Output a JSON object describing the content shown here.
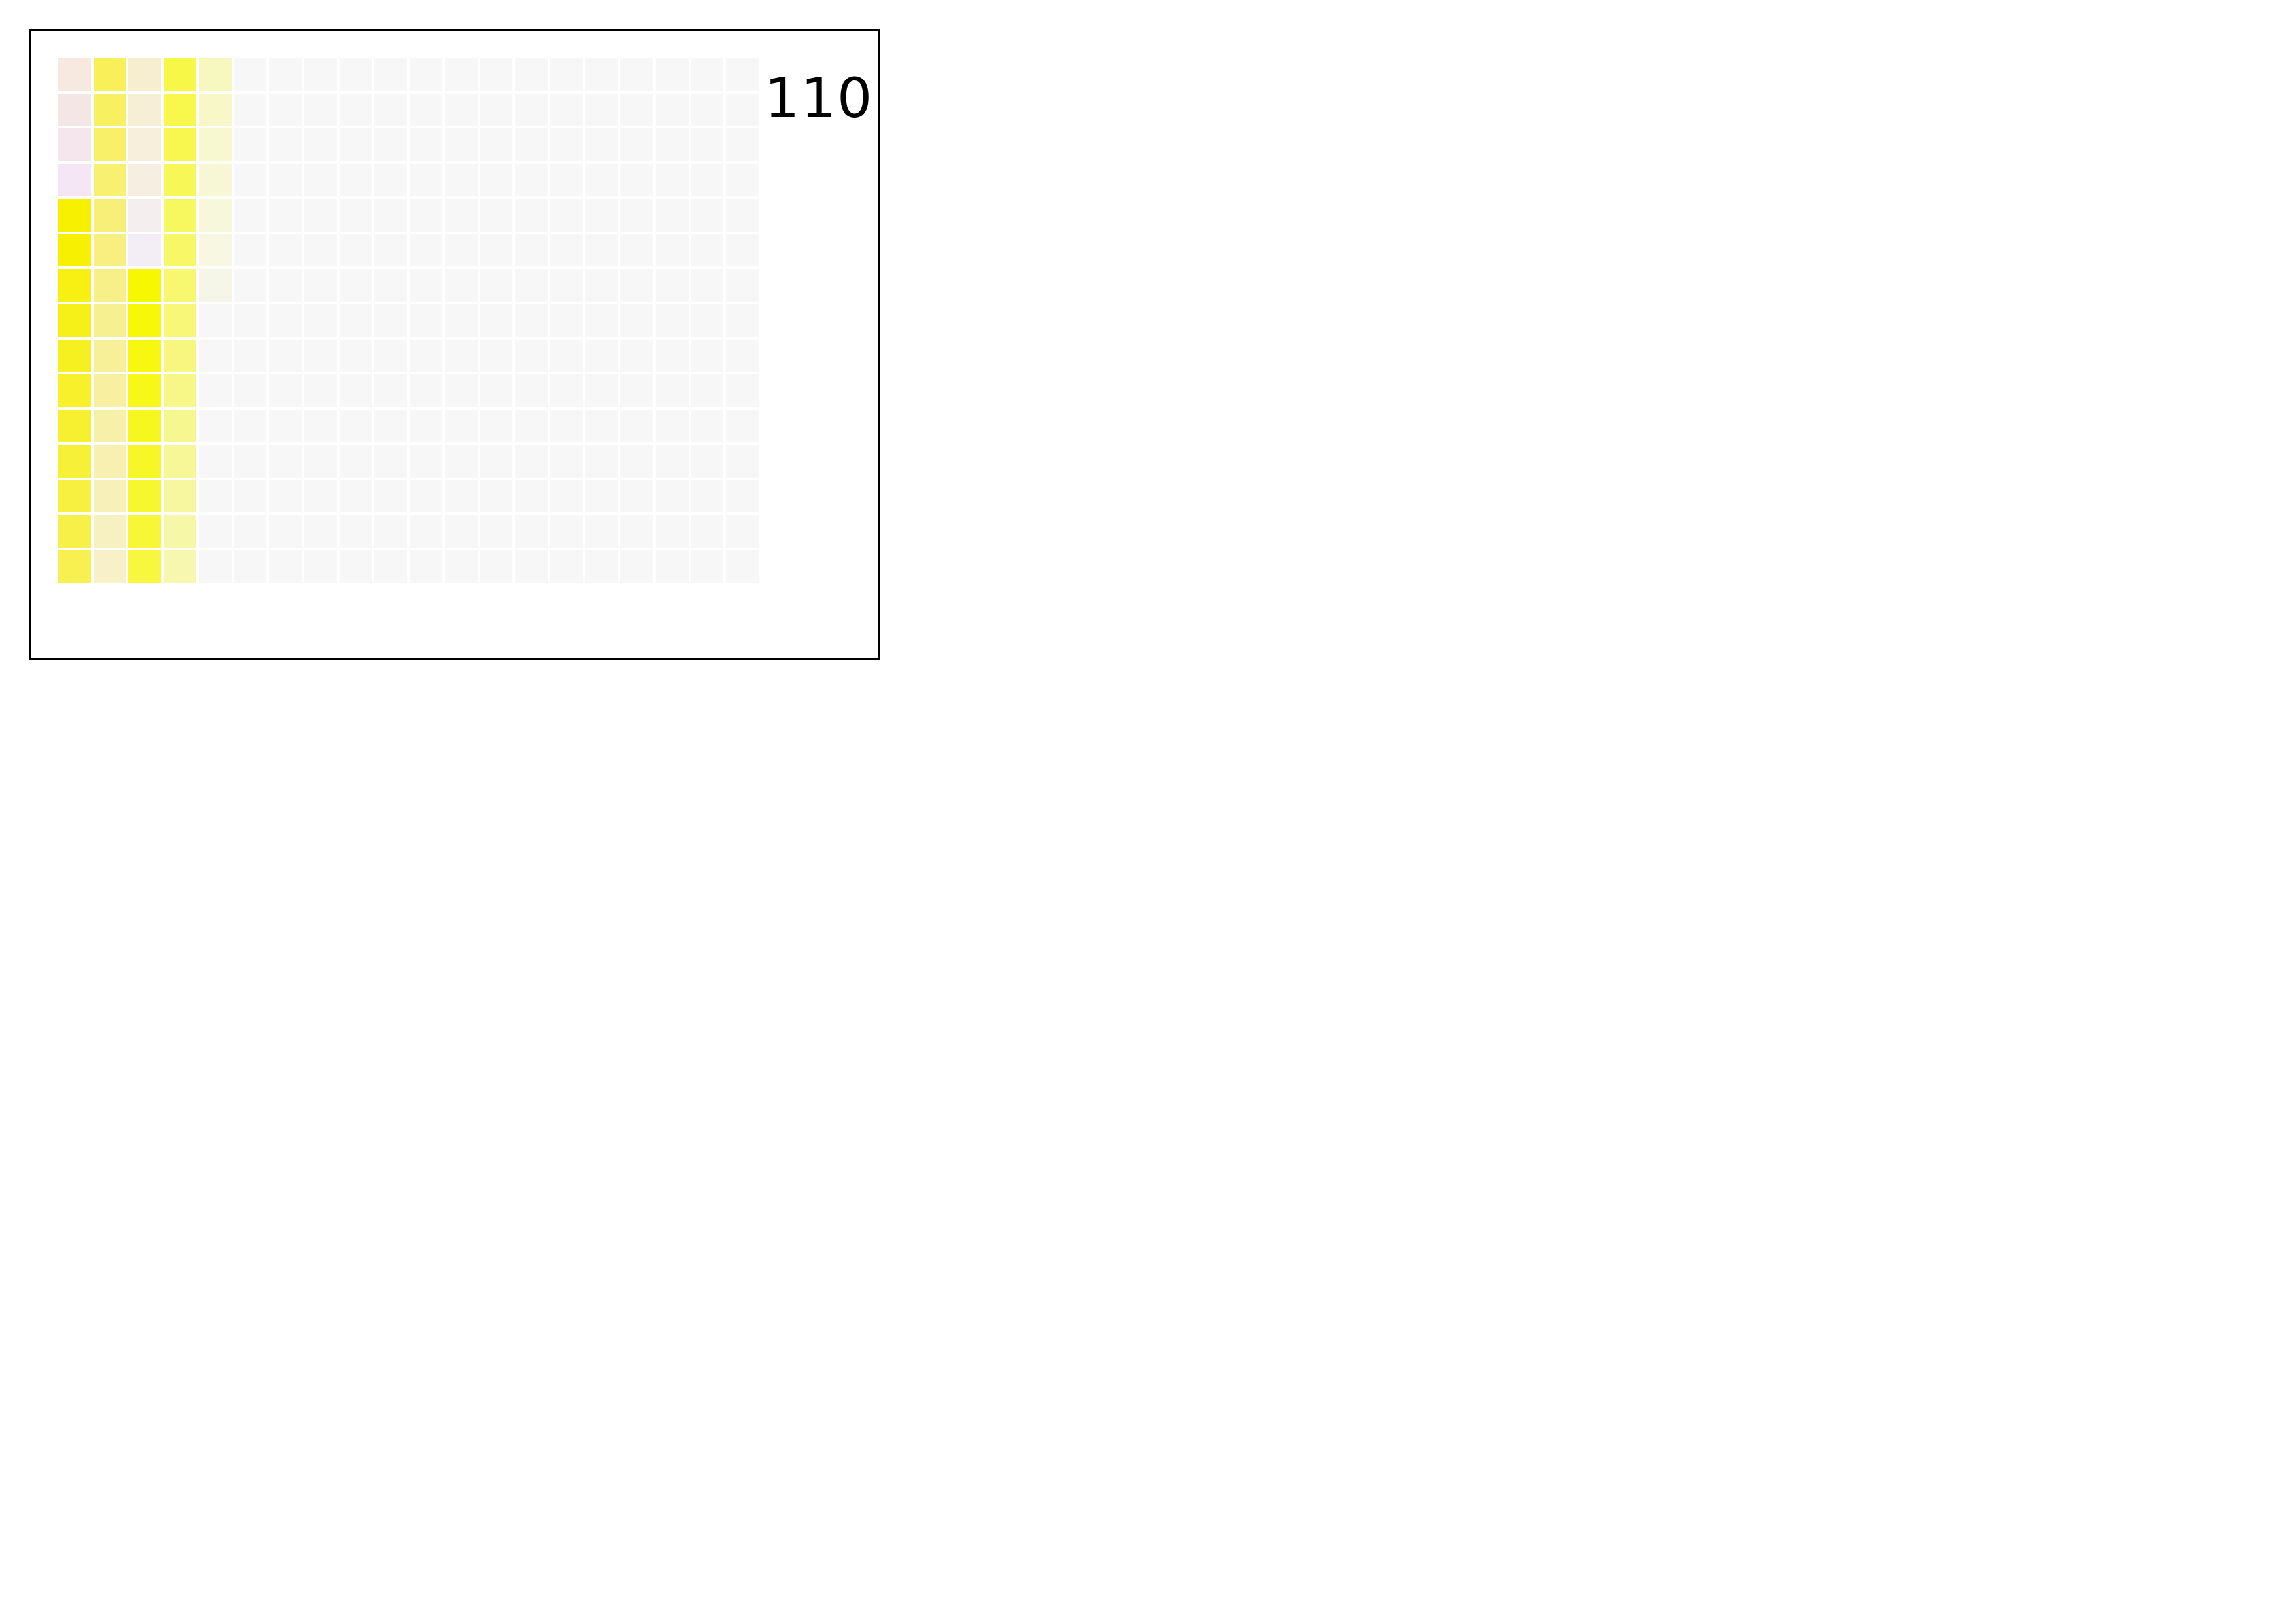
{
  "counter": "110",
  "grid": {
    "columns": 20,
    "rows": 15,
    "empty_color": "#f7f7f7",
    "filled_columns": [
      [
        "#f7e8e0",
        "#f5e6e6",
        "#f5e6ee",
        "#f5e6f5",
        "#f7f000",
        "#f7f000",
        "#f7f012",
        "#f7f018",
        "#f7f020",
        "#f7f02a",
        "#f7f030",
        "#f7f038",
        "#f7f040",
        "#f7f048",
        "#f7f050"
      ],
      [
        "#f7f058",
        "#f7f060",
        "#f7f068",
        "#f7f070",
        "#f7f078",
        "#f7f080",
        "#f7f088",
        "#f7f090",
        "#f7f098",
        "#f7f0a0",
        "#f7f0a8",
        "#f7f0b0",
        "#f7f0b8",
        "#f7f0c0",
        "#f7f0c8"
      ],
      [
        "#f7eed0",
        "#f7eed6",
        "#f7eedc",
        "#f7eee2",
        "#f5eeee",
        "#f3eef5",
        "#f7f700",
        "#f7f708",
        "#f7f710",
        "#f7f718",
        "#f7f720",
        "#f7f728",
        "#f7f730",
        "#f7f738",
        "#f7f740"
      ],
      [
        "#f7f748",
        "#f7f74c",
        "#f7f750",
        "#f7f758",
        "#f7f760",
        "#f7f768",
        "#f7f770",
        "#f7f778",
        "#f7f780",
        "#f7f788",
        "#f7f790",
        "#f7f798",
        "#f7f7a0",
        "#f7f7a8",
        "#f7f7b0"
      ],
      [
        "#f7f7c0",
        "#f7f7c8",
        "#f7f7d0",
        "#f7f7d6",
        "#f7f7dc",
        "#f7f7e2",
        "#f6f6e8"
      ]
    ]
  }
}
